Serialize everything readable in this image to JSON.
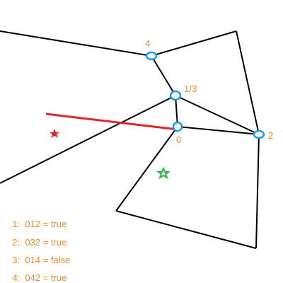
{
  "colors": {
    "edge": "#000000",
    "ray": "#e0262d",
    "vertex": "#1e9be0",
    "label": "#f08a2e",
    "star_red": "#e0262d",
    "star_green": "#2ab24a"
  },
  "vertex_labels": {
    "v4": "4",
    "v13": "1/3",
    "v0": "0",
    "v2": "2"
  },
  "legend": [
    {
      "number": "1",
      "text": "012 = true"
    },
    {
      "number": "2",
      "text": "032 = true"
    },
    {
      "number": "3",
      "text": "014 = false"
    },
    {
      "number": "4",
      "text": "042 = true"
    }
  ],
  "icons": {
    "red_star": "red-star-icon",
    "green_star": "green-star-icon"
  }
}
